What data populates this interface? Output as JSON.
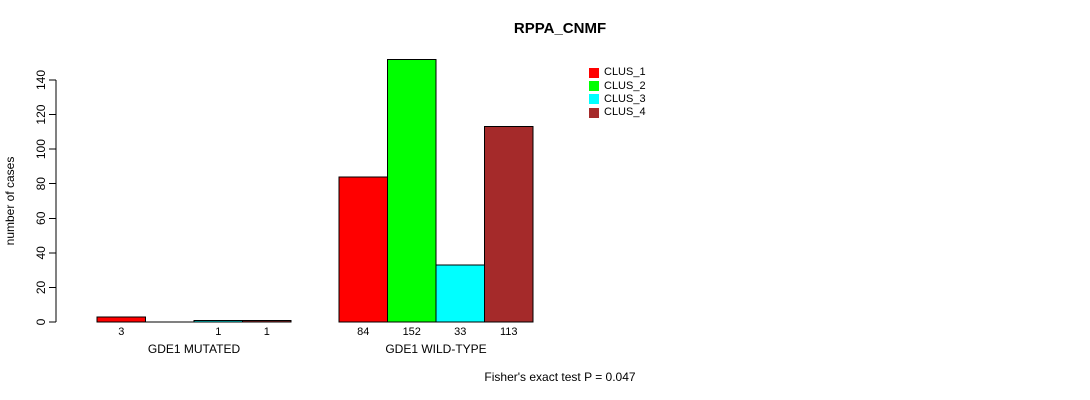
{
  "chart_data": {
    "type": "bar",
    "title": "RPPA_CNMF",
    "ylabel": "number of cases",
    "ylim": [
      0,
      152
    ],
    "yticks": [
      0,
      20,
      40,
      60,
      80,
      100,
      120,
      140
    ],
    "grid": false,
    "legend_position": "top-right",
    "categories": [
      "GDE1 MUTATED",
      "GDE1 WILD-TYPE"
    ],
    "series": [
      {
        "name": "CLUS_1",
        "color": "#ff0000",
        "values": [
          3,
          84
        ]
      },
      {
        "name": "CLUS_2",
        "color": "#00ff00",
        "values": [
          0,
          152
        ]
      },
      {
        "name": "CLUS_3",
        "color": "#00ffff",
        "values": [
          1,
          33
        ]
      },
      {
        "name": "CLUS_4",
        "color": "#a52a2a",
        "values": [
          1,
          113
        ]
      }
    ],
    "bar_value_labels": [
      [
        "3",
        "",
        "1",
        "1"
      ],
      [
        "84",
        "152",
        "33",
        "113"
      ]
    ],
    "annotation": "Fisher's exact test P = 0.047",
    "axis_color": "#000000",
    "background": "#ffffff"
  }
}
